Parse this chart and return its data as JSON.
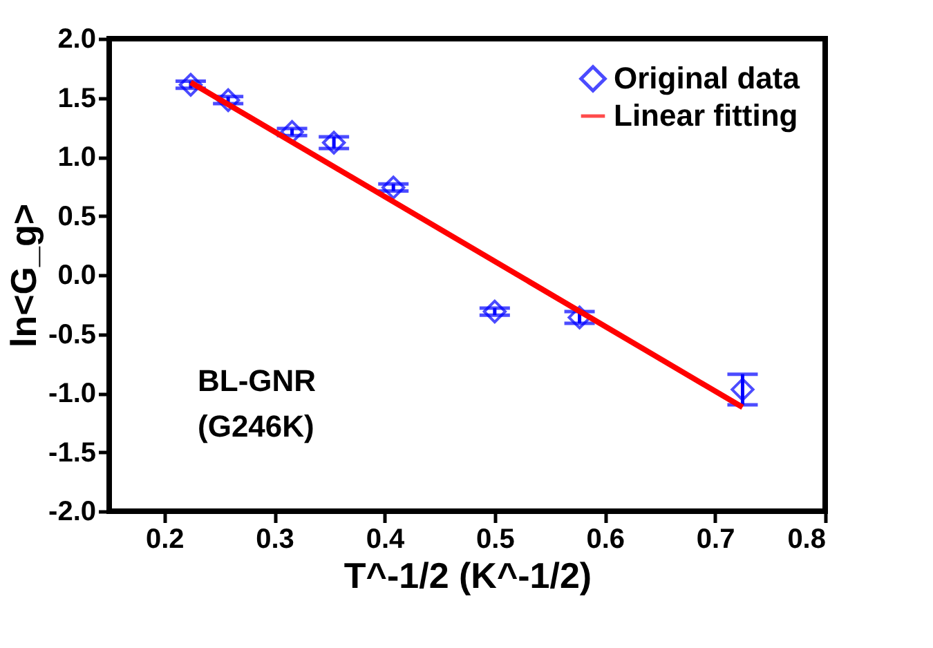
{
  "chart_data": {
    "type": "scatter",
    "xlabel": "T^-1/2 (K^-1/2)",
    "ylabel": "ln<G_g>",
    "annotations": [
      "BL-GNR",
      "(G246K)"
    ],
    "series": [
      {
        "name": "Original data",
        "color": "#0000ff",
        "marker": "diamond",
        "x": [
          0.224,
          0.258,
          0.316,
          0.354,
          0.408,
          0.5,
          0.577,
          0.725
        ],
        "values": [
          1.61,
          1.48,
          1.21,
          1.12,
          0.74,
          -0.31,
          -0.36,
          -0.97
        ],
        "errors": [
          0.03,
          0.03,
          0.03,
          0.05,
          0.03,
          0.03,
          0.05,
          0.13
        ]
      },
      {
        "name": "Linear fitting",
        "type": "line",
        "color": "#ff0000",
        "x": [
          0.224,
          0.725
        ],
        "values": [
          1.63,
          -1.12
        ]
      }
    ],
    "xlim": [
      0.15,
      0.8
    ],
    "xticks": [
      0.2,
      0.3,
      0.4,
      0.5,
      0.6,
      0.7,
      0.8
    ],
    "ylim": [
      -2.0,
      2.0
    ],
    "yticks": [
      {
        "value": -2.0,
        "label": "-2.0"
      },
      {
        "value": -1.5,
        "label": "-1.5"
      },
      {
        "value": -1.0,
        "label": "-1.0"
      },
      {
        "value": -0.5,
        "label": "-0.5"
      },
      {
        "value": 0.0,
        "label": "0.0"
      },
      {
        "value": 0.5,
        "label": "0.5"
      },
      {
        "value": 1.0,
        "label": "1.0"
      },
      {
        "value": 1.5,
        "label": "1.5"
      },
      {
        "value": 2.0,
        "label": "2.0"
      }
    ],
    "grid": false,
    "legend": "top right"
  }
}
